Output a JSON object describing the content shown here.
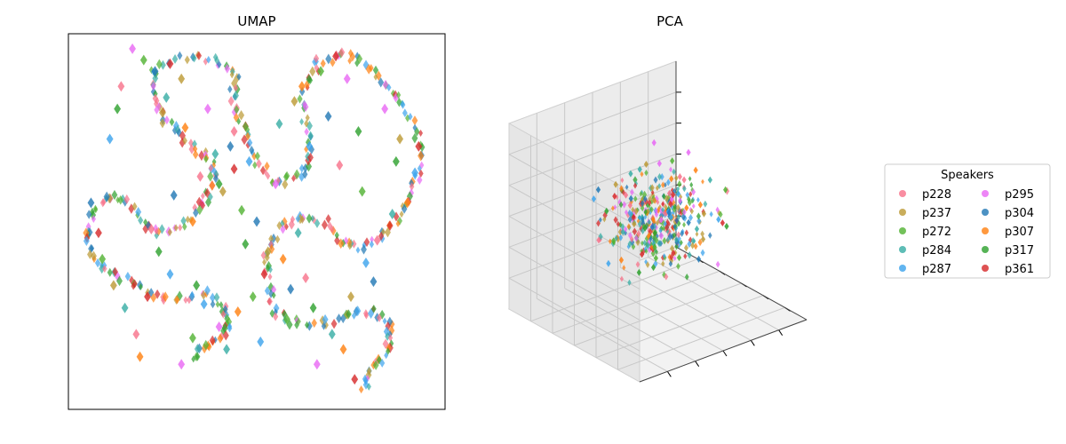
{
  "colors": {
    "p228": "#f77189",
    "p237": "#bb9832",
    "p272": "#50b131",
    "p284": "#36ada4",
    "p287": "#3ba3ec",
    "p295": "#e866f4",
    "p304": "#1f77b4",
    "p307": "#ff7f0e",
    "p317": "#2ca02c",
    "p361": "#d62728"
  },
  "chart_data": [
    {
      "type": "scatter",
      "title": "UMAP",
      "xlabel": "",
      "ylabel": "",
      "ticks": "none",
      "grid": false,
      "series": [
        {
          "speaker": "p228",
          "points": [
            [
              0.14,
              0.86
            ],
            [
              0.35,
              0.62
            ],
            [
              0.18,
              0.2
            ],
            [
              0.72,
              0.65
            ],
            [
              0.63,
              0.35
            ],
            [
              0.82,
              0.45
            ],
            [
              0.44,
              0.74
            ],
            [
              0.22,
              0.48
            ]
          ]
        },
        {
          "speaker": "p237",
          "points": [
            [
              0.3,
              0.88
            ],
            [
              0.41,
              0.58
            ],
            [
              0.12,
              0.33
            ],
            [
              0.6,
              0.82
            ],
            [
              0.75,
              0.3
            ],
            [
              0.53,
              0.42
            ],
            [
              0.25,
              0.79
            ],
            [
              0.88,
              0.72
            ]
          ]
        },
        {
          "speaker": "p272",
          "points": [
            [
              0.2,
              0.93
            ],
            [
              0.46,
              0.53
            ],
            [
              0.09,
              0.4
            ],
            [
              0.67,
              0.9
            ],
            [
              0.58,
              0.24
            ],
            [
              0.78,
              0.58
            ],
            [
              0.33,
              0.19
            ],
            [
              0.49,
              0.3
            ]
          ]
        },
        {
          "speaker": "p284",
          "points": [
            [
              0.26,
              0.83
            ],
            [
              0.39,
              0.68
            ],
            [
              0.15,
              0.27
            ],
            [
              0.56,
              0.76
            ],
            [
              0.7,
              0.2
            ],
            [
              0.86,
              0.52
            ],
            [
              0.61,
              0.47
            ],
            [
              0.42,
              0.16
            ]
          ]
        },
        {
          "speaker": "p287",
          "points": [
            [
              0.11,
              0.72
            ],
            [
              0.48,
              0.66
            ],
            [
              0.27,
              0.36
            ],
            [
              0.64,
              0.7
            ],
            [
              0.79,
              0.39
            ],
            [
              0.51,
              0.18
            ],
            [
              0.92,
              0.63
            ],
            [
              0.36,
              0.28
            ]
          ]
        },
        {
          "speaker": "p295",
          "points": [
            [
              0.17,
              0.96
            ],
            [
              0.37,
              0.8
            ],
            [
              0.3,
              0.12
            ],
            [
              0.74,
              0.88
            ],
            [
              0.66,
              0.12
            ],
            [
              0.84,
              0.8
            ],
            [
              0.55,
              0.6
            ],
            [
              0.4,
              0.22
            ]
          ]
        },
        {
          "speaker": "p304",
          "points": [
            [
              0.23,
              0.9
            ],
            [
              0.43,
              0.7
            ],
            [
              0.06,
              0.55
            ],
            [
              0.69,
              0.78
            ],
            [
              0.59,
              0.32
            ],
            [
              0.81,
              0.34
            ],
            [
              0.5,
              0.5
            ],
            [
              0.28,
              0.57
            ]
          ]
        },
        {
          "speaker": "p307",
          "points": [
            [
              0.31,
              0.75
            ],
            [
              0.33,
              0.5
            ],
            [
              0.19,
              0.14
            ],
            [
              0.62,
              0.86
            ],
            [
              0.73,
              0.16
            ],
            [
              0.9,
              0.55
            ],
            [
              0.57,
              0.4
            ],
            [
              0.45,
              0.26
            ]
          ]
        },
        {
          "speaker": "p317",
          "points": [
            [
              0.13,
              0.8
            ],
            [
              0.4,
              0.6
            ],
            [
              0.24,
              0.42
            ],
            [
              0.77,
              0.74
            ],
            [
              0.65,
              0.27
            ],
            [
              0.87,
              0.66
            ],
            [
              0.47,
              0.44
            ],
            [
              0.34,
              0.33
            ]
          ]
        },
        {
          "speaker": "p361",
          "points": [
            [
              0.27,
              0.92
            ],
            [
              0.44,
              0.64
            ],
            [
              0.08,
              0.47
            ],
            [
              0.71,
              0.94
            ],
            [
              0.76,
              0.08
            ],
            [
              0.93,
              0.7
            ],
            [
              0.52,
              0.36
            ],
            [
              0.21,
              0.3
            ]
          ]
        }
      ]
    },
    {
      "type": "scatter",
      "title": "PCA",
      "projection": "3d",
      "xlabel": "",
      "ylabel": "",
      "zlabel": "",
      "tick_labels": "none",
      "grid": true,
      "series": [
        {
          "speaker": "p228",
          "points": [
            [
              0.55,
              0.2,
              0.3
            ],
            [
              -0.4,
              0.1,
              0.45
            ],
            [
              0.8,
              0.6,
              0.1
            ],
            [
              -0.1,
              -0.35,
              0.55
            ],
            [
              0.25,
              0.85,
              -0.2
            ],
            [
              -0.65,
              0.3,
              -0.15
            ]
          ]
        },
        {
          "speaker": "p237",
          "points": [
            [
              0.3,
              -0.5,
              0.2
            ],
            [
              -0.2,
              0.55,
              0.35
            ],
            [
              0.6,
              -0.1,
              -0.4
            ],
            [
              -0.55,
              -0.25,
              0.25
            ],
            [
              0.1,
              0.35,
              0.6
            ]
          ]
        },
        {
          "speaker": "p272",
          "points": [
            [
              -0.35,
              0.4,
              -0.3
            ],
            [
              0.45,
              0.3,
              0.55
            ],
            [
              -0.15,
              -0.6,
              -0.2
            ],
            [
              0.7,
              -0.4,
              0.35
            ],
            [
              0.05,
              0.1,
              -0.55
            ]
          ]
        },
        {
          "speaker": "p284",
          "points": [
            [
              0.2,
              0.6,
              0.4
            ],
            [
              -0.6,
              -0.1,
              0.1
            ],
            [
              0.35,
              -0.3,
              -0.1
            ],
            [
              -0.25,
              0.2,
              0.65
            ],
            [
              0.9,
              0.15,
              0.2
            ]
          ]
        },
        {
          "speaker": "p287",
          "points": [
            [
              -0.45,
              0.65,
              0.2
            ],
            [
              0.15,
              -0.2,
              0.4
            ],
            [
              0.55,
              0.45,
              -0.3
            ],
            [
              -0.7,
              0.05,
              -0.35
            ],
            [
              0.4,
              -0.65,
              0.15
            ]
          ]
        },
        {
          "speaker": "p295",
          "points": [
            [
              0.1,
              0.2,
              0.95
            ],
            [
              0.85,
              0.5,
              0.45
            ],
            [
              -0.3,
              -0.45,
              0.3
            ],
            [
              0.65,
              0.8,
              0.25
            ],
            [
              0.25,
              0.05,
              0.2
            ]
          ]
        },
        {
          "speaker": "p304",
          "points": [
            [
              -0.05,
              0.45,
              0.15
            ],
            [
              0.5,
              0.05,
              -0.2
            ],
            [
              -0.5,
              0.5,
              0.4
            ],
            [
              0.3,
              -0.4,
              -0.45
            ],
            [
              -0.2,
              -0.15,
              0.05
            ]
          ]
        },
        {
          "speaker": "p307",
          "points": [
            [
              0.75,
              0.7,
              0.05
            ],
            [
              -0.35,
              0.25,
              -0.5
            ],
            [
              0.45,
              -0.15,
              0.6
            ],
            [
              0.95,
              0.4,
              -0.25
            ],
            [
              0.0,
              -0.55,
              0.4
            ]
          ]
        },
        {
          "speaker": "p317",
          "points": [
            [
              -0.65,
              0.15,
              0.3
            ],
            [
              0.2,
              0.5,
              -0.35
            ],
            [
              0.6,
              -0.55,
              -0.05
            ],
            [
              -0.3,
              -0.3,
              -0.4
            ],
            [
              -0.75,
              -0.6,
              -0.2
            ]
          ]
        },
        {
          "speaker": "p361",
          "points": [
            [
              0.35,
              0.15,
              -0.6
            ],
            [
              -0.1,
              0.7,
              0.1
            ],
            [
              0.5,
              -0.6,
              0.05
            ],
            [
              -0.55,
              -0.4,
              -0.1
            ],
            [
              0.15,
              -0.1,
              0.35
            ]
          ]
        }
      ]
    }
  ],
  "legend": {
    "title": "Speakers",
    "placement": "right",
    "ncols": 2,
    "entries": [
      "p228",
      "p237",
      "p272",
      "p284",
      "p287",
      "p295",
      "p304",
      "p307",
      "p317",
      "p361"
    ]
  }
}
